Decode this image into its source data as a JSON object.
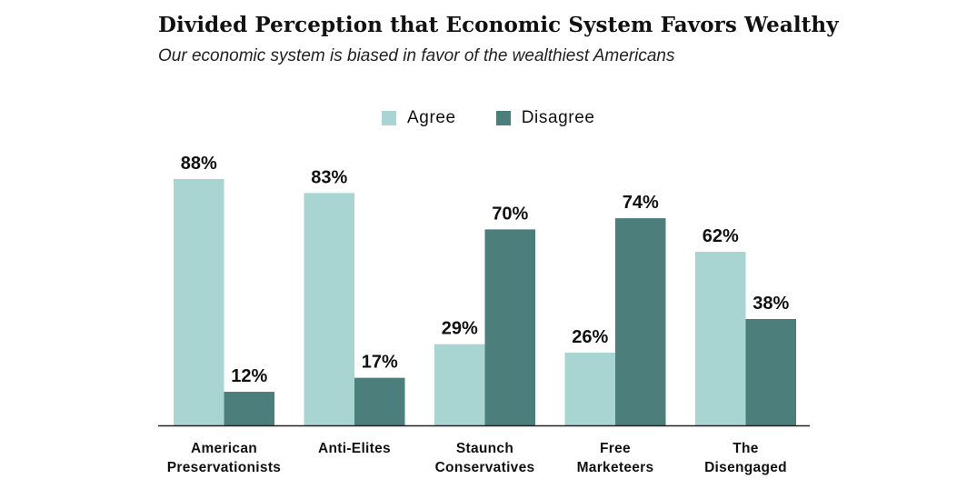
{
  "chart_data": {
    "type": "bar",
    "title": "Divided Perception that Economic System Favors Wealthy",
    "subtitle": "Our economic system is biased in favor of the wealthiest Americans",
    "categories": [
      [
        "American",
        "Preservationists"
      ],
      [
        "Anti-Elites"
      ],
      [
        "Staunch",
        "Conservatives"
      ],
      [
        "Free",
        "Marketeers"
      ],
      [
        "The",
        "Disengaged"
      ]
    ],
    "series": [
      {
        "name": "Agree",
        "values": [
          88,
          83,
          29,
          26,
          62
        ],
        "color": "#a8d5d1"
      },
      {
        "name": "Disagree",
        "values": [
          12,
          17,
          70,
          74,
          38
        ],
        "color": "#4c7f7c"
      }
    ],
    "value_suffix": "%",
    "ylim": [
      0,
      100
    ],
    "grid": false,
    "legend_position": "top-center",
    "xlabel": "",
    "ylabel": ""
  }
}
